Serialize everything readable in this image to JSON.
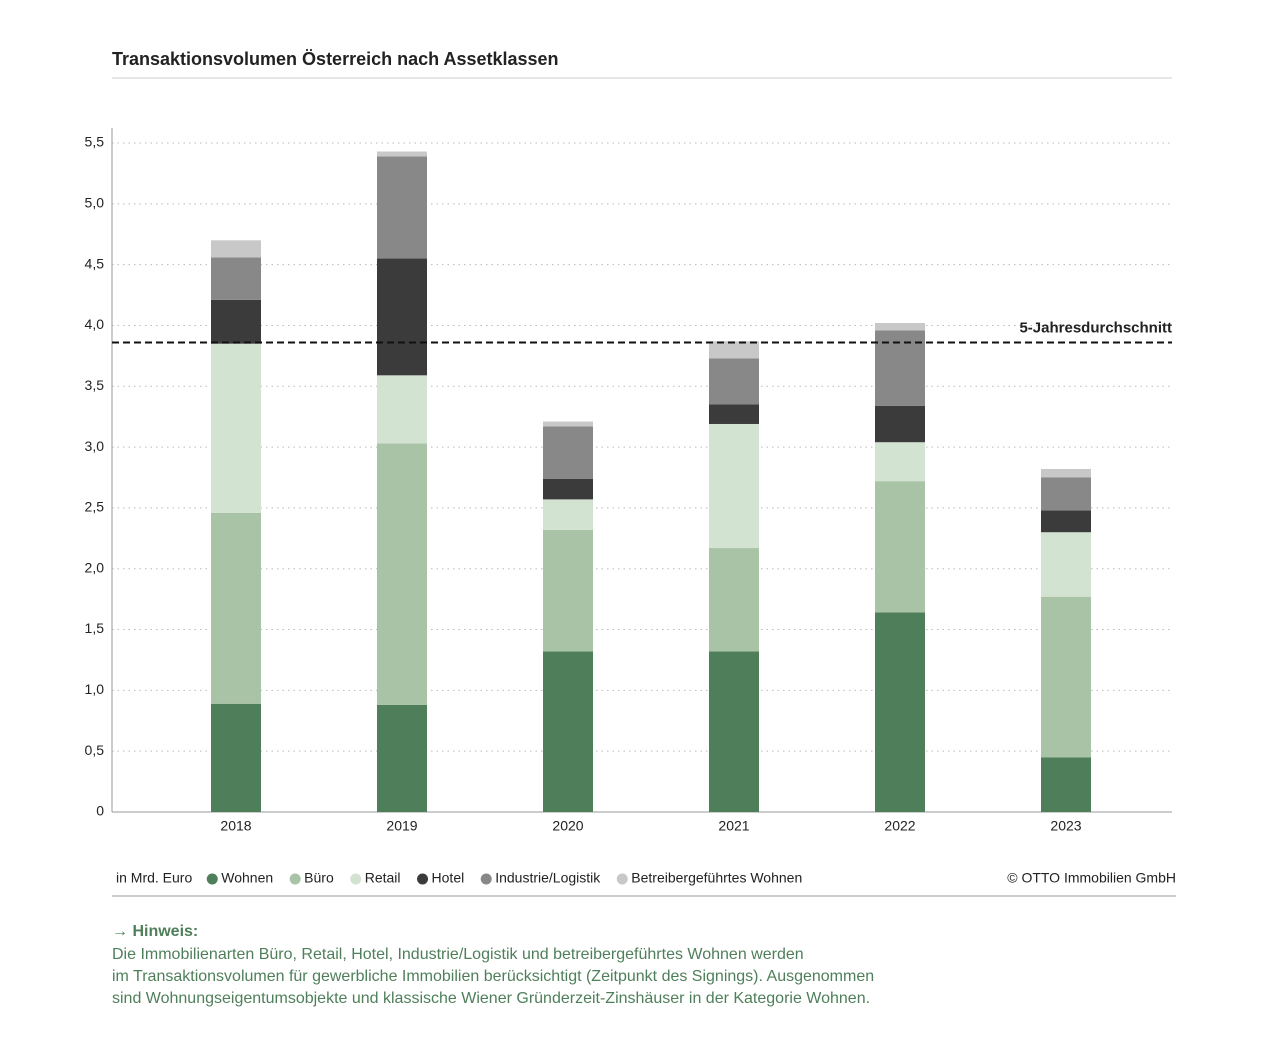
{
  "chart_data": {
    "type": "stacked-bar",
    "title": "Transaktionsvolumen Österreich nach Assetklassen",
    "categories": [
      "2018",
      "2019",
      "2020",
      "2021",
      "2022",
      "2023"
    ],
    "series": [
      {
        "name": "Wohnen",
        "color": "#4f7f5a",
        "values": [
          0.89,
          0.88,
          1.32,
          1.32,
          1.64,
          0.45
        ]
      },
      {
        "name": "Büro",
        "color": "#a9c3a6",
        "values": [
          1.57,
          2.15,
          1.0,
          0.85,
          1.08,
          1.32
        ]
      },
      {
        "name": "Retail",
        "color": "#d3e3d1",
        "values": [
          1.39,
          0.56,
          0.25,
          1.02,
          0.32,
          0.53
        ]
      },
      {
        "name": "Hotel",
        "color": "#3b3b3b",
        "values": [
          0.36,
          0.96,
          0.17,
          0.16,
          0.3,
          0.18
        ]
      },
      {
        "name": "Industrie/Logistik",
        "color": "#888888",
        "values": [
          0.35,
          0.84,
          0.43,
          0.38,
          0.62,
          0.27
        ]
      },
      {
        "name": "Betreibergeführtes Wohnen",
        "color": "#c8c8c8",
        "values": [
          0.14,
          0.04,
          0.04,
          0.14,
          0.06,
          0.07
        ]
      }
    ],
    "average": {
      "label": "5-Jahresdurchschnitt",
      "value": 3.86
    },
    "ylim": [
      0,
      5.5
    ],
    "yticks": [
      0,
      {
        "value": 0.5,
        "label": "0,5"
      },
      {
        "value": 1,
        "label": "1,0"
      },
      {
        "value": 1.5,
        "label": "1,5"
      },
      {
        "value": 2,
        "label": "2,0"
      },
      {
        "value": 2.5,
        "label": "2,5"
      },
      {
        "value": 3,
        "label": "3,0"
      },
      {
        "value": 3.5,
        "label": "3,5"
      },
      {
        "value": 4,
        "label": "4,0"
      },
      {
        "value": 4.5,
        "label": "4,5"
      },
      {
        "value": 5,
        "label": "5,0"
      },
      {
        "value": 5.5,
        "label": "5,5"
      }
    ],
    "grid": true,
    "unit_label": "in Mrd. Euro",
    "source": "© OTTO Immobilien GmbH"
  },
  "note": {
    "heading": "→ Hinweis:",
    "lines": [
      "Die Immobilienarten Büro, Retail, Hotel, Industrie/Logistik und betreibergeführtes Wohnen werden",
      "im Transaktionsvolumen für gewerbliche Immobilien berücksichtigt (Zeitpunkt des Signings). Ausgenommen",
      "sind Wohnungseigentumsobjekte und klassische Wiener Gründerzeit-Zinshäuser in der Kategorie Wohnen."
    ]
  }
}
